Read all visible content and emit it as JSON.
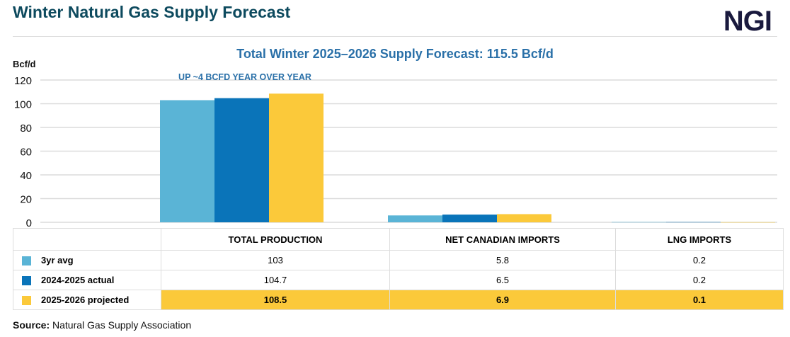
{
  "header": {
    "title": "Winter Natural Gas Supply Forecast",
    "logo": "NGI"
  },
  "chart_data": {
    "type": "bar",
    "title": "Total Winter 2025–2026 Supply Forecast: 115.5 Bcf/d",
    "ylabel": "Bcf/d",
    "ylim": [
      0,
      120
    ],
    "yticks": [
      "0",
      "20",
      "40",
      "60",
      "80",
      "100",
      "120"
    ],
    "grid": true,
    "annotation": "UP ~4 BCFD YEAR OVER YEAR",
    "categories": [
      "TOTAL PRODUCTION",
      "NET CANADIAN IMPORTS",
      "LNG IMPORTS"
    ],
    "series": [
      {
        "name": "3yr avg",
        "color": "#5ab4d6",
        "values": [
          103,
          5.8,
          0.2
        ],
        "labels": [
          "103",
          "5.8",
          "0.2"
        ]
      },
      {
        "name": "2024-2025 actual",
        "color": "#0a74b9",
        "values": [
          104.7,
          6.5,
          0.2
        ],
        "labels": [
          "104.7",
          "6.5",
          "0.2"
        ]
      },
      {
        "name": "2025-2026 projected",
        "color": "#fbc93a",
        "values": [
          108.5,
          6.9,
          0.1
        ],
        "labels": [
          "108.5",
          "6.9",
          "0.1"
        ]
      }
    ]
  },
  "source": {
    "label": "Source:",
    "text": "Natural Gas Supply Association"
  }
}
